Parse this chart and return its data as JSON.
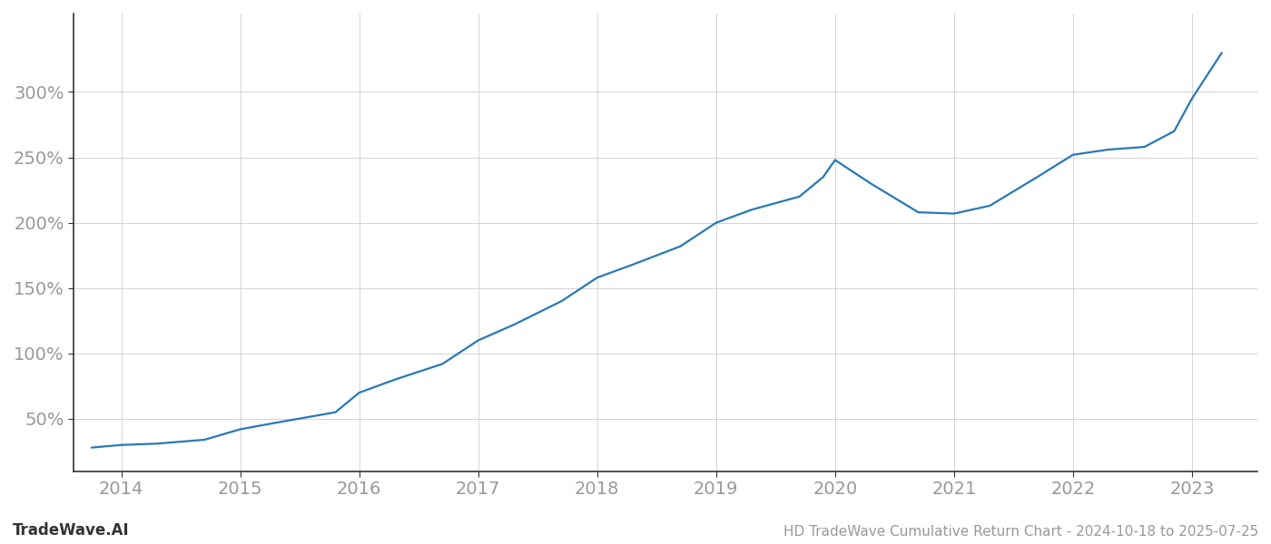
{
  "title": "HD TradeWave Cumulative Return Chart - 2024-10-18 to 2025-07-25",
  "watermark": "TradeWave.AI",
  "line_color": "#2878b8",
  "background_color": "#ffffff",
  "grid_color": "#cccccc",
  "x_years": [
    2014,
    2015,
    2016,
    2017,
    2018,
    2019,
    2020,
    2021,
    2022,
    2023
  ],
  "x_data": [
    2013.75,
    2014.0,
    2014.3,
    2014.7,
    2015.0,
    2015.3,
    2015.8,
    2016.0,
    2016.3,
    2016.7,
    2017.0,
    2017.3,
    2017.7,
    2018.0,
    2018.3,
    2018.7,
    2019.0,
    2019.3,
    2019.7,
    2019.9,
    2020.0,
    2020.3,
    2020.7,
    2021.0,
    2021.3,
    2021.7,
    2022.0,
    2022.3,
    2022.6,
    2022.85,
    2023.0,
    2023.25
  ],
  "y_data": [
    28,
    30,
    31,
    34,
    42,
    47,
    55,
    70,
    80,
    92,
    110,
    122,
    140,
    158,
    168,
    182,
    200,
    210,
    220,
    235,
    248,
    230,
    208,
    207,
    213,
    235,
    252,
    256,
    258,
    270,
    295,
    330
  ],
  "yticks": [
    50,
    100,
    150,
    200,
    250,
    300
  ],
  "ylim": [
    10,
    360
  ],
  "xlim": [
    2013.6,
    2023.55
  ],
  "xlabel_fontsize": 14,
  "ylabel_fontsize": 14,
  "title_fontsize": 11,
  "watermark_fontsize": 12,
  "tick_label_color": "#999999",
  "spine_color": "#333333",
  "grid_linewidth": 0.6,
  "line_width": 1.6
}
